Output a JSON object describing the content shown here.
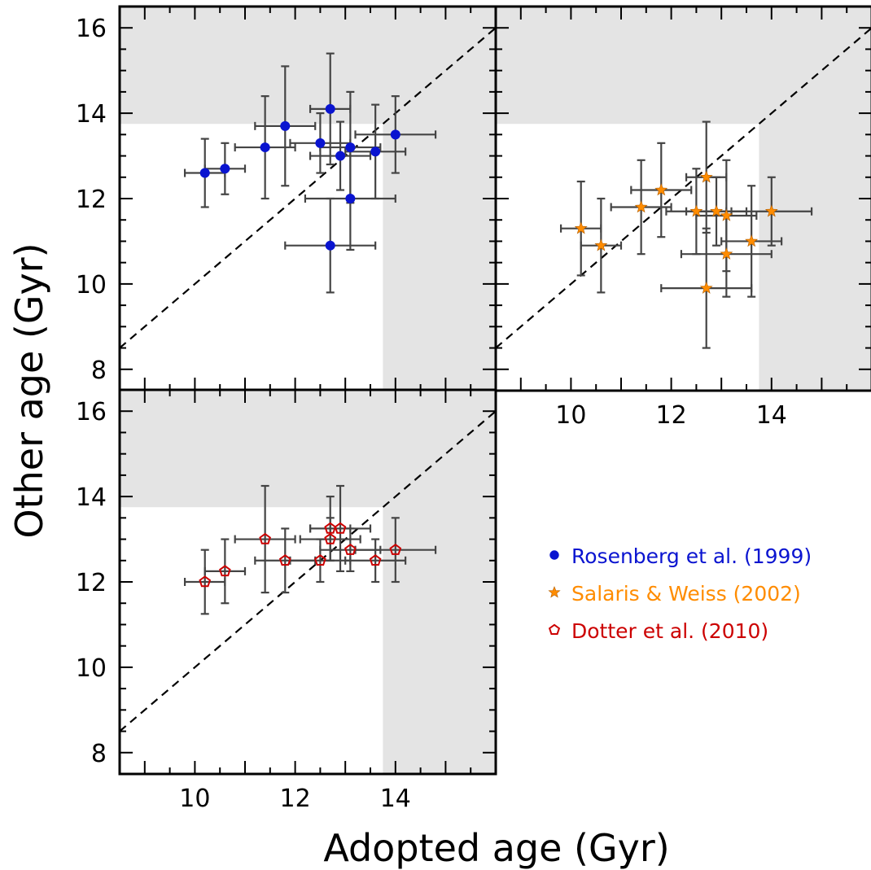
{
  "colors": {
    "rosenberg": "#0a14d0",
    "salaris": "#ff8c00",
    "dotter": "#cc0000",
    "errorbar": "#444444",
    "shade": "#e4e4e4"
  },
  "chart_data": {
    "type": "scatter",
    "xlabel": "Adopted age (Gyr)",
    "ylabel": "Other age (Gyr)",
    "xlim": [
      8.5,
      16
    ],
    "ylim": [
      7.5,
      16.5
    ],
    "xticks": [
      "10",
      "12",
      "14"
    ],
    "yticks": [
      "8",
      "10",
      "12",
      "14",
      "16"
    ],
    "shade_limit": 13.75,
    "one_to_one_line": true,
    "legend_position": "bottom-right",
    "series": [
      {
        "name": "Rosenberg et al. (1999)",
        "marker": "circle",
        "color": "#0a14d0",
        "panel": "top-left",
        "points": [
          {
            "x": 10.2,
            "y": 12.6,
            "xerr": 0.4,
            "yerr": 0.8
          },
          {
            "x": 10.6,
            "y": 12.7,
            "xerr": 0.4,
            "yerr": 0.6
          },
          {
            "x": 11.4,
            "y": 13.2,
            "xerr": 0.6,
            "yerr": 1.2
          },
          {
            "x": 11.8,
            "y": 13.7,
            "xerr": 0.6,
            "yerr": 1.4
          },
          {
            "x": 12.5,
            "y": 13.3,
            "xerr": 0.6,
            "yerr": 0.7
          },
          {
            "x": 12.7,
            "y": 14.1,
            "xerr": 0.4,
            "yerr": 1.3
          },
          {
            "x": 12.9,
            "y": 13.0,
            "xerr": 0.6,
            "yerr": 0.8
          },
          {
            "x": 13.1,
            "y": 13.2,
            "xerr": 0.6,
            "yerr": 1.3
          },
          {
            "x": 13.6,
            "y": 13.1,
            "xerr": 0.6,
            "yerr": 1.1
          },
          {
            "x": 14.0,
            "y": 13.5,
            "xerr": 0.8,
            "yerr": 0.9
          },
          {
            "x": 13.1,
            "y": 12.0,
            "xerr": 0.9,
            "yerr": 1.2
          },
          {
            "x": 12.7,
            "y": 10.9,
            "xerr": 0.9,
            "yerr": 1.1
          }
        ]
      },
      {
        "name": "Salaris & Weiss (2002)",
        "marker": "star",
        "color": "#ff8c00",
        "panel": "top-right",
        "points": [
          {
            "x": 10.2,
            "y": 11.3,
            "xerr": 0.4,
            "yerr": 1.1
          },
          {
            "x": 10.6,
            "y": 10.9,
            "xerr": 0.4,
            "yerr": 1.1
          },
          {
            "x": 11.4,
            "y": 11.8,
            "xerr": 0.6,
            "yerr": 1.1
          },
          {
            "x": 11.8,
            "y": 12.2,
            "xerr": 0.6,
            "yerr": 1.1
          },
          {
            "x": 12.5,
            "y": 11.7,
            "xerr": 0.6,
            "yerr": 1.0
          },
          {
            "x": 12.7,
            "y": 12.5,
            "xerr": 0.4,
            "yerr": 1.3
          },
          {
            "x": 12.9,
            "y": 11.7,
            "xerr": 0.6,
            "yerr": 0.8
          },
          {
            "x": 13.1,
            "y": 11.6,
            "xerr": 0.6,
            "yerr": 1.3
          },
          {
            "x": 13.6,
            "y": 11.0,
            "xerr": 0.6,
            "yerr": 1.3
          },
          {
            "x": 14.0,
            "y": 11.7,
            "xerr": 0.8,
            "yerr": 0.8
          },
          {
            "x": 13.1,
            "y": 10.7,
            "xerr": 0.9,
            "yerr": 1.0
          },
          {
            "x": 12.7,
            "y": 9.9,
            "xerr": 0.9,
            "yerr": 1.4
          }
        ]
      },
      {
        "name": "Dotter et al. (2010)",
        "marker": "pentagon",
        "color": "#cc0000",
        "panel": "bottom-left",
        "points": [
          {
            "x": 10.2,
            "y": 12.0,
            "xerr": 0.4,
            "yerr": 0.75
          },
          {
            "x": 10.6,
            "y": 12.25,
            "xerr": 0.4,
            "yerr": 0.75
          },
          {
            "x": 11.4,
            "y": 13.0,
            "xerr": 0.6,
            "yerr": 1.25
          },
          {
            "x": 11.8,
            "y": 12.5,
            "xerr": 0.6,
            "yerr": 0.75
          },
          {
            "x": 12.5,
            "y": 12.5,
            "xerr": 0.6,
            "yerr": 0.5
          },
          {
            "x": 12.7,
            "y": 13.25,
            "xerr": 0.4,
            "yerr": 0.75
          },
          {
            "x": 12.9,
            "y": 13.25,
            "xerr": 0.6,
            "yerr": 1.0
          },
          {
            "x": 13.1,
            "y": 12.75,
            "xerr": 0.6,
            "yerr": 0.5
          },
          {
            "x": 13.6,
            "y": 12.5,
            "xerr": 0.6,
            "yerr": 0.5
          },
          {
            "x": 14.0,
            "y": 12.75,
            "xerr": 0.8,
            "yerr": 0.75
          },
          {
            "x": 12.7,
            "y": 13.0,
            "xerr": 0.6,
            "yerr": 0.5
          }
        ]
      }
    ]
  }
}
